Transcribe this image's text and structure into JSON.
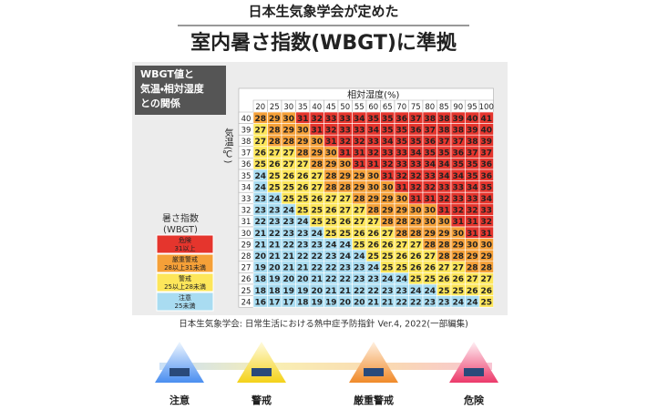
{
  "header": {
    "subtitle": "日本生気象学会が定めた",
    "title": "室内暑さ指数(WBGT)に準拠"
  },
  "panel_label": [
    "WBGT値と",
    "気温・相対湿度",
    "との関係"
  ],
  "table": {
    "title": "相対湿度(%)",
    "axis_label": "気温(℃)",
    "columns": [
      20,
      25,
      30,
      35,
      40,
      45,
      50,
      55,
      60,
      65,
      70,
      75,
      80,
      85,
      90,
      95,
      100
    ],
    "rows": [
      {
        "label": 40,
        "values": [
          28,
          29,
          30,
          31,
          32,
          33,
          33,
          34,
          35,
          35,
          36,
          37,
          38,
          38,
          39,
          40,
          41
        ]
      },
      {
        "label": 39,
        "values": [
          27,
          28,
          29,
          30,
          31,
          32,
          33,
          33,
          34,
          35,
          35,
          36,
          37,
          38,
          38,
          39,
          40
        ]
      },
      {
        "label": 38,
        "values": [
          27,
          28,
          28,
          29,
          30,
          31,
          32,
          32,
          33,
          34,
          35,
          35,
          36,
          37,
          37,
          38,
          39
        ]
      },
      {
        "label": 37,
        "values": [
          26,
          27,
          27,
          28,
          29,
          30,
          31,
          31,
          32,
          33,
          33,
          34,
          35,
          35,
          36,
          37,
          37
        ]
      },
      {
        "label": 36,
        "values": [
          25,
          26,
          27,
          27,
          28,
          29,
          30,
          31,
          31,
          32,
          33,
          33,
          34,
          34,
          35,
          35,
          36
        ]
      },
      {
        "label": 35,
        "values": [
          24,
          25,
          26,
          26,
          27,
          28,
          29,
          29,
          30,
          31,
          32,
          32,
          33,
          34,
          34,
          35,
          36
        ]
      },
      {
        "label": 34,
        "values": [
          24,
          25,
          25,
          26,
          27,
          28,
          28,
          29,
          30,
          30,
          31,
          32,
          32,
          33,
          33,
          34,
          35
        ]
      },
      {
        "label": 33,
        "values": [
          23,
          24,
          25,
          25,
          26,
          27,
          27,
          28,
          29,
          29,
          30,
          31,
          31,
          32,
          33,
          33,
          34
        ]
      },
      {
        "label": 32,
        "values": [
          23,
          23,
          24,
          25,
          25,
          26,
          27,
          27,
          28,
          29,
          29,
          30,
          30,
          31,
          32,
          32,
          33
        ]
      },
      {
        "label": 31,
        "values": [
          22,
          23,
          23,
          24,
          25,
          25,
          26,
          27,
          27,
          28,
          28,
          29,
          30,
          30,
          31,
          31,
          32
        ]
      },
      {
        "label": 30,
        "values": [
          21,
          22,
          23,
          23,
          24,
          25,
          25,
          26,
          26,
          27,
          28,
          28,
          29,
          29,
          30,
          31,
          31
        ]
      },
      {
        "label": 29,
        "values": [
          21,
          21,
          22,
          23,
          23,
          24,
          24,
          25,
          26,
          26,
          27,
          27,
          28,
          28,
          29,
          30,
          30
        ]
      },
      {
        "label": 28,
        "values": [
          20,
          21,
          21,
          22,
          22,
          23,
          24,
          24,
          25,
          25,
          26,
          26,
          27,
          28,
          28,
          29,
          29
        ]
      },
      {
        "label": 27,
        "values": [
          19,
          20,
          21,
          21,
          22,
          22,
          23,
          23,
          24,
          25,
          25,
          26,
          26,
          27,
          27,
          28,
          28
        ]
      },
      {
        "label": 26,
        "values": [
          18,
          19,
          20,
          20,
          21,
          22,
          22,
          23,
          23,
          24,
          24,
          25,
          25,
          26,
          26,
          27,
          27
        ]
      },
      {
        "label": 25,
        "values": [
          18,
          18,
          19,
          19,
          20,
          21,
          21,
          22,
          22,
          23,
          23,
          24,
          24,
          25,
          25,
          26,
          26
        ]
      },
      {
        "label": 24,
        "values": [
          16,
          17,
          17,
          18,
          19,
          19,
          20,
          20,
          21,
          21,
          22,
          22,
          23,
          23,
          24,
          24,
          25
        ]
      }
    ]
  },
  "legend": {
    "title": [
      "暑さ指数",
      "(WBGT)"
    ],
    "items": [
      {
        "label": "危険",
        "range": "31以上",
        "min": 31,
        "color": "#e5352d"
      },
      {
        "label": "厳重警戒",
        "range": "28以上31未満",
        "min": 28,
        "color": "#f5a038"
      },
      {
        "label": "警戒",
        "range": "25以上28未満",
        "min": 25,
        "color": "#fde65a"
      },
      {
        "label": "注意",
        "range": "25未満",
        "min": null,
        "color": "#a9dcf1"
      }
    ]
  },
  "source": "日本生気象学会: 日常生活における熱中症予防指針 Ver.4, 2022(一部編集)",
  "products": [
    "注意",
    "警戒",
    "厳重警戒",
    "危険"
  ]
}
